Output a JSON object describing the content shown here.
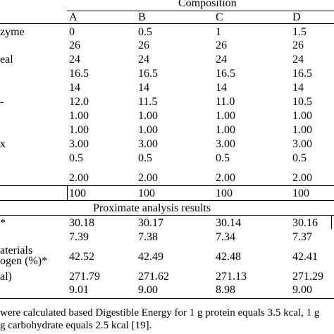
{
  "header": {
    "group_title": "Composition",
    "columns": [
      "A",
      "B",
      "C",
      "D"
    ]
  },
  "rows": [
    {
      "label": "zyme",
      "values": [
        "0",
        "0.5",
        "1",
        "1.5"
      ]
    },
    {
      "label": "",
      "values": [
        "26",
        "26",
        "26",
        "26"
      ]
    },
    {
      "label": "eal",
      "values": [
        "24",
        "24",
        "24",
        "24"
      ]
    },
    {
      "label": "",
      "values": [
        "16.5",
        "16.5",
        "16.5",
        "16.5"
      ]
    },
    {
      "label": "",
      "values": [
        "14",
        "14",
        "14",
        "14"
      ]
    },
    {
      "label": "-",
      "values": [
        "12.0",
        "11.5",
        "11.0",
        "10.5"
      ]
    },
    {
      "label": "",
      "values": [
        "1.00",
        "1.00",
        "1.00",
        "1.00"
      ]
    },
    {
      "label": "",
      "values": [
        "1.00",
        "1.00",
        "1.00",
        "1.00"
      ]
    },
    {
      "label": "x",
      "values": [
        "3.00",
        "3.00",
        "3.00",
        "3.00"
      ]
    },
    {
      "label": "",
      "values": [
        "0.5",
        "0.5",
        "0.5",
        "0.5"
      ]
    },
    {
      "label": "",
      "values": [
        "2.00",
        "2.00",
        "2.00",
        "2.00"
      ]
    }
  ],
  "total": {
    "values": [
      "100",
      "100",
      "100",
      "100"
    ]
  },
  "proximate_title": "Proximate analysis results",
  "proximate_rows": [
    {
      "label": "*",
      "values": [
        "30.18",
        "30.17",
        "30.14",
        "30.16"
      ]
    },
    {
      "label": "",
      "values": [
        "7.39",
        "7.38",
        "7.34",
        "7.37"
      ]
    },
    {
      "label_line1": "aterials",
      "label_line2": "ogen (%)*",
      "values": [
        "42.52",
        "42.49",
        "42.48",
        "42.41"
      ]
    },
    {
      "label": "al)",
      "values": [
        "271.79",
        "271.62",
        "271.13",
        "271.29"
      ]
    },
    {
      "label": "",
      "values": [
        "9.01",
        "9.00",
        "8.98",
        "9.00"
      ]
    }
  ],
  "footnote": {
    "line1": "were calculated based Digestible Energy for 1 g protein equals 3.5 kcal, 1 g",
    "line2": "g carbohydrate equals 2.5 kcal [19]."
  }
}
